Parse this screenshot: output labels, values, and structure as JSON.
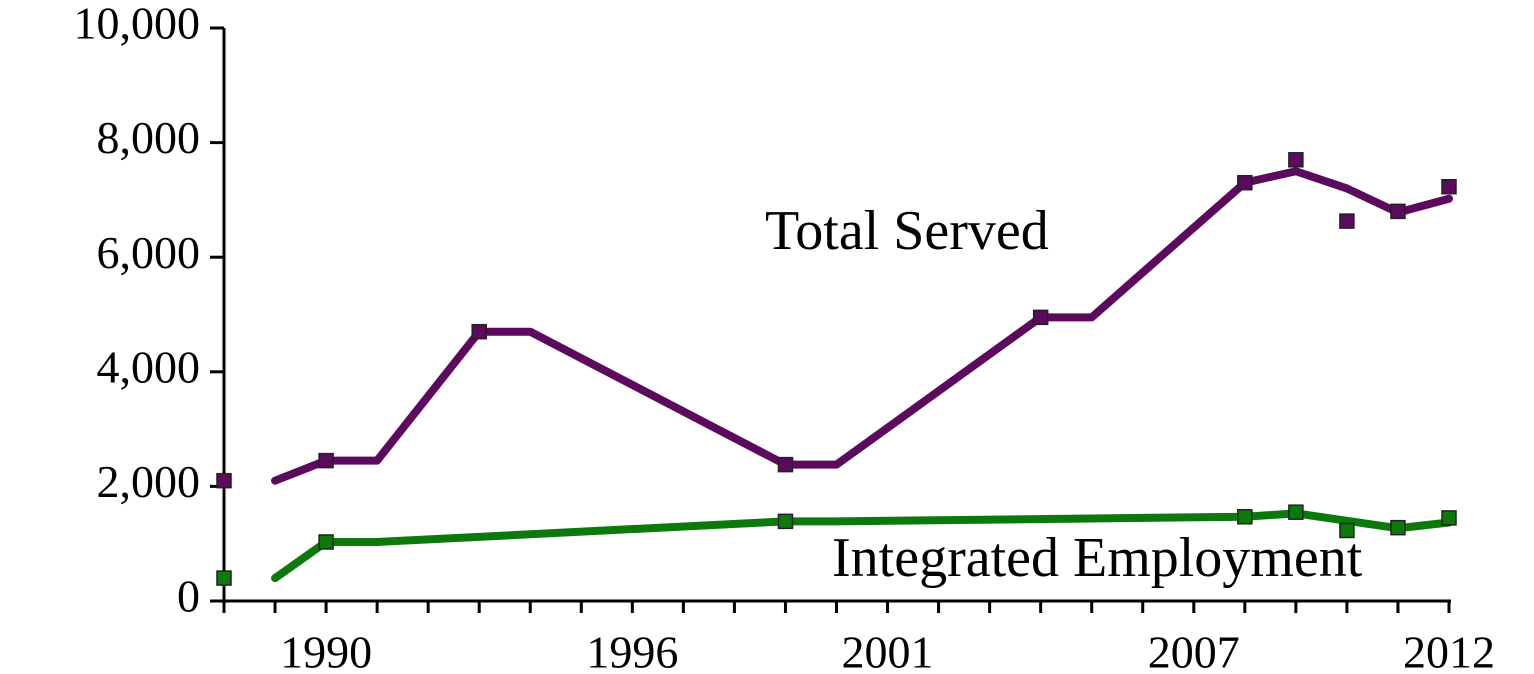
{
  "chart_data": {
    "type": "line",
    "xlim": [
      1988,
      2012
    ],
    "xticks": [
      1990,
      1996,
      2001,
      2007,
      2012
    ],
    "xminor_ticks": [
      1988,
      1989,
      1990,
      1991,
      1992,
      1993,
      1994,
      1995,
      1996,
      1997,
      1998,
      1999,
      2000,
      2001,
      2002,
      2003,
      2004,
      2005,
      2006,
      2007,
      2008,
      2009,
      2010,
      2011,
      2012
    ],
    "ylim": [
      0,
      10000
    ],
    "yticks": [
      0,
      {
        "value": 2000,
        "label": "2,000"
      },
      {
        "value": 4000,
        "label": "4,000"
      },
      {
        "value": 6000,
        "label": "6,000"
      },
      {
        "value": 8000,
        "label": "8,000"
      },
      {
        "value": 10000,
        "label": "10,000"
      }
    ],
    "series": [
      {
        "name": "Total Served",
        "color": "#5b0a5e",
        "x": [
          1989,
          1990,
          1991,
          1993,
          1994,
          1999,
          2000,
          2004,
          2005,
          2008,
          2009,
          2010,
          2011,
          2012
        ],
        "values": [
          2100,
          2450,
          2450,
          4700,
          4700,
          2380,
          2380,
          4950,
          4950,
          7300,
          7500,
          7200,
          6780,
          7020
        ],
        "points_x": [
          1988,
          1990,
          1993,
          1999,
          2004,
          2008,
          2009,
          2010,
          2011,
          2012
        ],
        "points": [
          2100,
          2450,
          4700,
          2380,
          4950,
          7300,
          7700,
          6630,
          6800,
          7230
        ]
      },
      {
        "name": "Integrated Employment",
        "color": "#0b7a0b",
        "x": [
          1989,
          1990,
          1991,
          1999,
          2000,
          2008,
          2009,
          2010,
          2011,
          2012
        ],
        "values": [
          400,
          1030,
          1030,
          1390,
          1390,
          1470,
          1530,
          1400,
          1270,
          1370
        ],
        "points_x": [
          1988,
          1990,
          1999,
          2008,
          2009,
          2010,
          2011,
          2012
        ],
        "points": [
          400,
          1030,
          1390,
          1470,
          1550,
          1230,
          1280,
          1450
        ]
      }
    ]
  }
}
